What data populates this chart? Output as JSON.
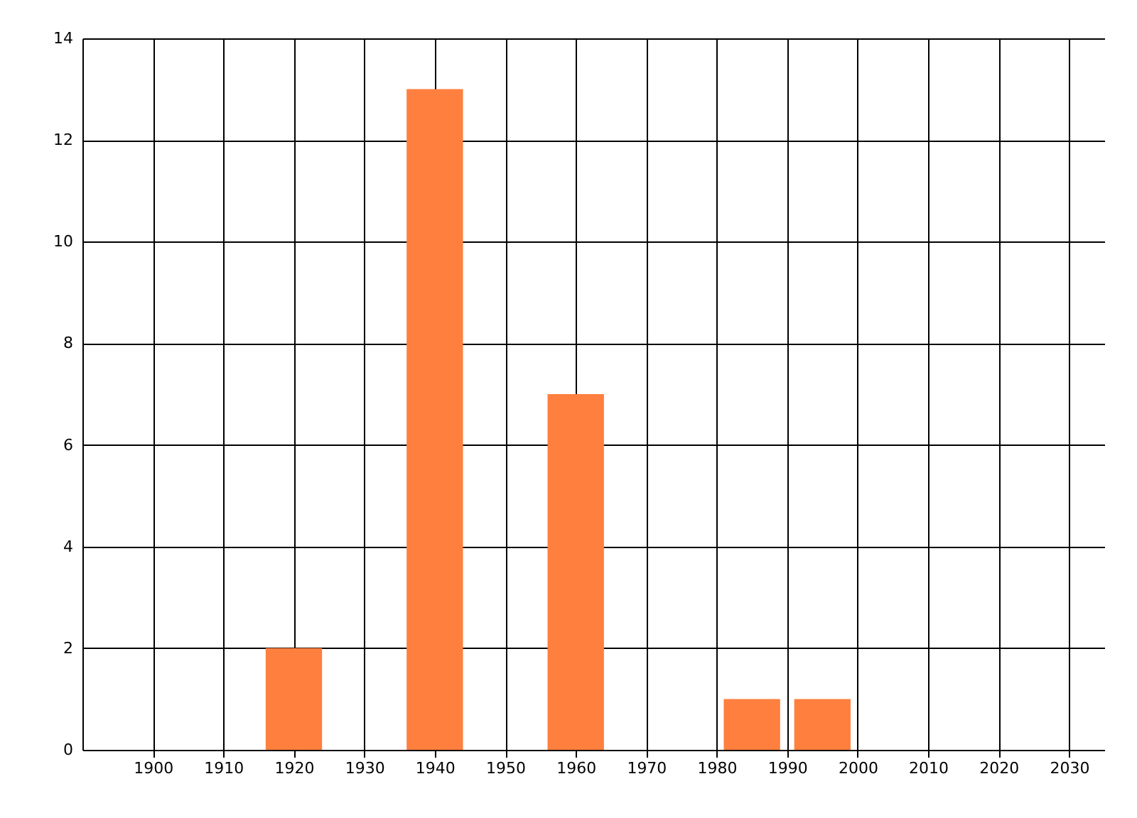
{
  "chart_data": {
    "type": "bar",
    "x": [
      1920,
      1940,
      1960,
      1985,
      1995
    ],
    "values": [
      2,
      13,
      7,
      1,
      1
    ],
    "color": "#ff7f3f",
    "xlim": [
      1890,
      2035
    ],
    "xticks": [
      1900,
      1910,
      1920,
      1930,
      1940,
      1950,
      1960,
      1970,
      1980,
      1990,
      2000,
      2010,
      2020,
      2030
    ],
    "ylim": [
      0,
      14
    ],
    "yticks": [
      0,
      2,
      4,
      6,
      8,
      10,
      12,
      14
    ],
    "grid": true
  }
}
